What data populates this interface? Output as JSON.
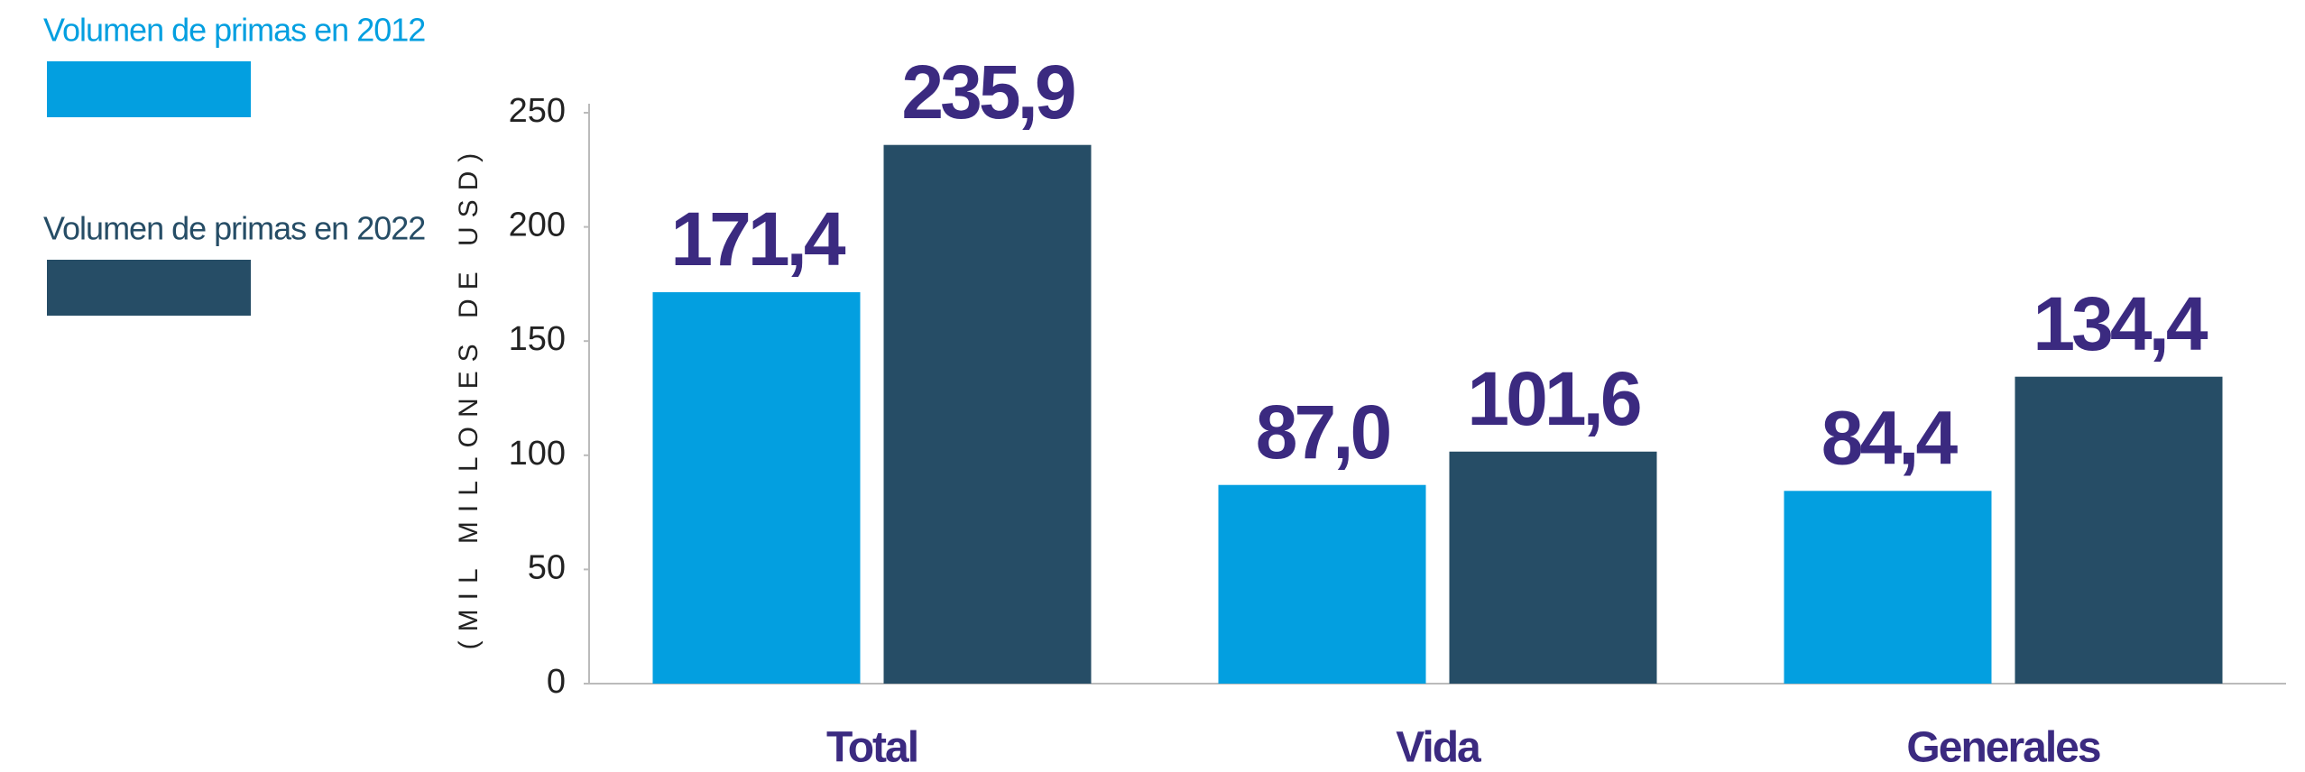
{
  "chart_data": {
    "type": "bar",
    "y_axis_label": "(MIL MILLONES DE USD)",
    "categories": [
      "Total",
      "Vida",
      "Generales"
    ],
    "series": [
      {
        "name": "Volumen de primas en 2012",
        "color": "#039fe0",
        "values": [
          171.4,
          87.0,
          84.4
        ],
        "value_labels": [
          "171,4",
          "87,0",
          "84,4"
        ]
      },
      {
        "name": "Volumen de primas en 2022",
        "color": "#264d66",
        "values": [
          235.9,
          101.6,
          134.4
        ],
        "value_labels": [
          "235,9",
          "101,6",
          "134,4"
        ]
      }
    ],
    "ylim": [
      0,
      250
    ],
    "yticks": [
      0,
      50,
      100,
      150,
      200,
      250
    ],
    "grid": false
  }
}
